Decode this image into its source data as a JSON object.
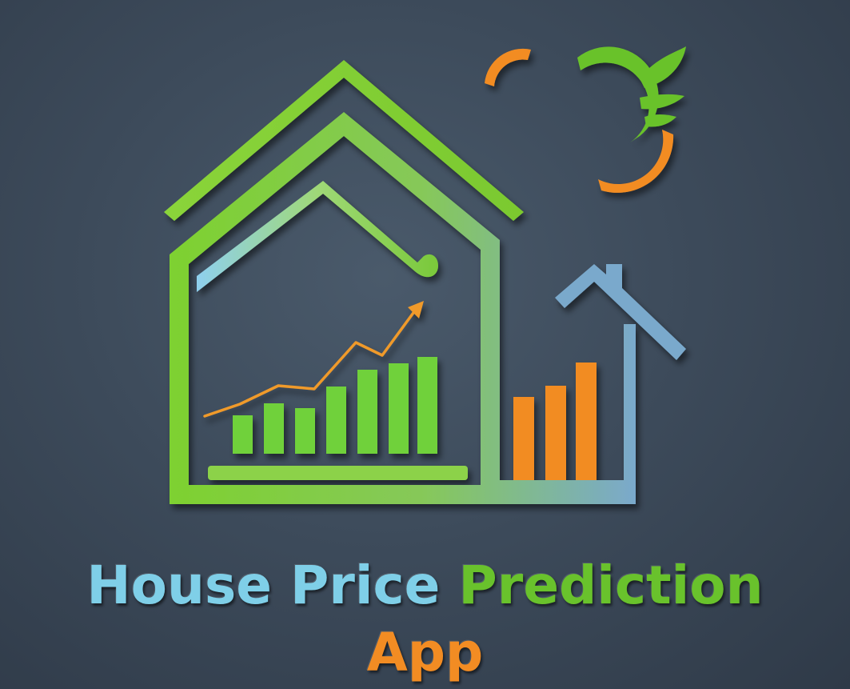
{
  "title": {
    "word_house": "House",
    "word_price": "Price",
    "word_prediction": "Prediction",
    "word_app": "App"
  },
  "colors": {
    "background": "#3d4b5b",
    "green": "#7acc2e",
    "light_blue": "#8cc8e6",
    "steel_blue": "#7aa9cc",
    "orange": "#f28c23"
  },
  "icons": {
    "house_outline": "house-outline-icon",
    "growth_arrow": "trend-arrow-icon",
    "sun_leaf": "sun-leaf-icon"
  },
  "bars_green_relative": [
    0.38,
    0.48,
    0.42,
    0.62,
    0.75,
    0.88,
    1.0
  ],
  "bars_orange_relative": [
    0.72,
    0.84,
    1.0
  ]
}
